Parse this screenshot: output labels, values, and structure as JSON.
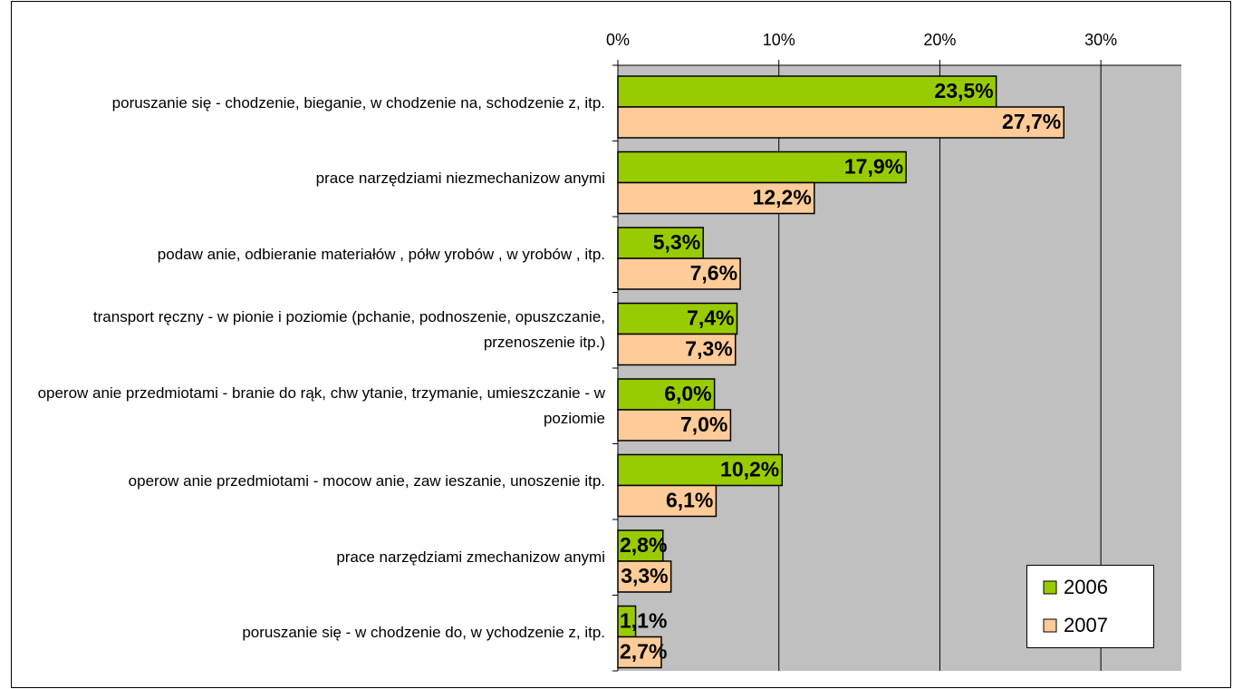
{
  "chart_data": {
    "type": "bar",
    "orientation": "horizontal",
    "categories": [
      "poruszanie się - chodzenie, bieganie, w chodzenie na, schodzenie z, itp.",
      "prace narzędziami niezmechanizow anymi",
      "podaw anie, odbieranie materiałów , półw yrobów , w yrobów , itp.",
      "transport ręczny - w  pionie i poziomie (pchanie, podnoszenie, opuszczanie, przenoszenie itp.)",
      "operow anie przedmiotami - branie do rąk, chw ytanie, trzymanie, umieszczanie - w  poziomie",
      "operow anie przedmiotami - mocow anie, zaw ieszanie, unoszenie itp.",
      "prace narzędziami zmechanizow anymi",
      "poruszanie się - w chodzenie do, w ychodzenie z, itp."
    ],
    "series": [
      {
        "name": "2006",
        "color": "#99cc00",
        "values": [
          23.5,
          17.9,
          5.3,
          7.4,
          6.0,
          10.2,
          2.8,
          1.1
        ],
        "value_labels": [
          "23,5%",
          "17,9%",
          "5,3%",
          "7,4%",
          "6,0%",
          "10,2%",
          "2,8%",
          "1,1%"
        ]
      },
      {
        "name": "2007",
        "color": "#ffcc99",
        "values": [
          27.7,
          12.2,
          7.6,
          7.3,
          7.0,
          6.1,
          3.3,
          2.7
        ],
        "value_labels": [
          "27,7%",
          "12,2%",
          "7,6%",
          "7,3%",
          "7,0%",
          "6,1%",
          "3,3%",
          "2,7%"
        ]
      }
    ],
    "xlim": [
      0,
      35
    ],
    "xticks": [
      {
        "value": 0,
        "label": "0%"
      },
      {
        "value": 10,
        "label": "10%"
      },
      {
        "value": 20,
        "label": "20%"
      },
      {
        "value": 30,
        "label": "30%"
      }
    ],
    "grid": true,
    "legend": "lower right"
  }
}
